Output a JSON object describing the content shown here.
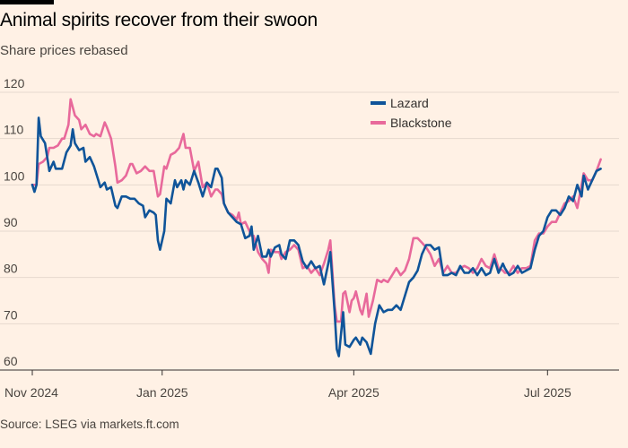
{
  "header": {
    "title": "Animal spirits recover from their swoon",
    "subtitle": "Share prices rebased"
  },
  "footer": {
    "source": "Source: LSEG via markets.ft.com"
  },
  "colors": {
    "background": "#fff1e5",
    "lazard": "#0f5499",
    "blackstone": "#e8699b",
    "grid": "#e6d9ce",
    "axis": "#33302e"
  },
  "chart_data": {
    "type": "line",
    "title": "Animal spirits recover from their swoon",
    "subtitle": "Share prices rebased",
    "xlabel": "",
    "ylabel": "",
    "ylim": [
      60,
      120
    ],
    "yticks": [
      120,
      110,
      100,
      90,
      80,
      70,
      60
    ],
    "grid": true,
    "legend_position": "top-center",
    "x_tick_labels": [
      "Nov 2024",
      "Jan 2025",
      "Apr 2025",
      "Jul 2025"
    ],
    "x_tick_days": [
      0,
      61,
      151,
      242
    ],
    "x_range_days": [
      0,
      268
    ],
    "series": [
      {
        "name": "Lazard",
        "color": "#0f5499",
        "points": [
          [
            0,
            100
          ],
          [
            1,
            98.5
          ],
          [
            2,
            100
          ],
          [
            3,
            114.5
          ],
          [
            4,
            110.5
          ],
          [
            6,
            109
          ],
          [
            7,
            106
          ],
          [
            8,
            103
          ],
          [
            10,
            105
          ],
          [
            11,
            103.5
          ],
          [
            14,
            103.5
          ],
          [
            16,
            107
          ],
          [
            18,
            108.5
          ],
          [
            19,
            112
          ],
          [
            20,
            109
          ],
          [
            22,
            107.5
          ],
          [
            24,
            108
          ],
          [
            25,
            105
          ],
          [
            27,
            106
          ],
          [
            29,
            104
          ],
          [
            31,
            101
          ],
          [
            32,
            99.5
          ],
          [
            34,
            100.5
          ],
          [
            35,
            99
          ],
          [
            37,
            99.5
          ],
          [
            39,
            95.5
          ],
          [
            40,
            95
          ],
          [
            42,
            97.5
          ],
          [
            44,
            97.5
          ],
          [
            46,
            97
          ],
          [
            48,
            97
          ],
          [
            50,
            96
          ],
          [
            52,
            95.5
          ],
          [
            53,
            93
          ],
          [
            55,
            94.5
          ],
          [
            57,
            94
          ],
          [
            58,
            93.5
          ],
          [
            59,
            88
          ],
          [
            60,
            86
          ],
          [
            62,
            90
          ],
          [
            63,
            97
          ],
          [
            65,
            96
          ],
          [
            67,
            101
          ],
          [
            68,
            99.5
          ],
          [
            70,
            101
          ],
          [
            71,
            99
          ],
          [
            72,
            101
          ],
          [
            74,
            100
          ],
          [
            76,
            103
          ],
          [
            78,
            100.5
          ],
          [
            80,
            97.5
          ],
          [
            82,
            100.5
          ],
          [
            84,
            99.5
          ],
          [
            86,
            103.5
          ],
          [
            87,
            103.5
          ],
          [
            89,
            101.5
          ],
          [
            90,
            96
          ],
          [
            92,
            94
          ],
          [
            94,
            93
          ],
          [
            96,
            92
          ],
          [
            98,
            91.5
          ],
          [
            100,
            88.5
          ],
          [
            102,
            89
          ],
          [
            103,
            91
          ],
          [
            104,
            86
          ],
          [
            106,
            89
          ],
          [
            108,
            84.5
          ],
          [
            110,
            84.5
          ],
          [
            111,
            86
          ],
          [
            112,
            84.5
          ],
          [
            114,
            86.5
          ],
          [
            116,
            87
          ],
          [
            117,
            85
          ],
          [
            119,
            84
          ],
          [
            121,
            88
          ],
          [
            123,
            88
          ],
          [
            125,
            87
          ],
          [
            127,
            83.5
          ],
          [
            129,
            82
          ],
          [
            131,
            83.5
          ],
          [
            133,
            82
          ],
          [
            135,
            82.5
          ],
          [
            137,
            78.5
          ],
          [
            139,
            83
          ],
          [
            140,
            85.5
          ],
          [
            142,
            72.5
          ],
          [
            143,
            64.5
          ],
          [
            144,
            63
          ],
          [
            146,
            72.5
          ],
          [
            147,
            65.5
          ],
          [
            149,
            65
          ],
          [
            151,
            66.5
          ],
          [
            152,
            67
          ],
          [
            154,
            65.5
          ],
          [
            155,
            67
          ],
          [
            157,
            66
          ],
          [
            159,
            63.5
          ],
          [
            161,
            70
          ],
          [
            163,
            74
          ],
          [
            165,
            72.5
          ],
          [
            167,
            73
          ],
          [
            169,
            73
          ],
          [
            171,
            74
          ],
          [
            173,
            73
          ],
          [
            175,
            76
          ],
          [
            177,
            79
          ],
          [
            179,
            80
          ],
          [
            181,
            81.5
          ],
          [
            183,
            85
          ],
          [
            185,
            87
          ],
          [
            187,
            87
          ],
          [
            189,
            86
          ],
          [
            191,
            86.5
          ],
          [
            193,
            80.5
          ],
          [
            195,
            80.5
          ],
          [
            197,
            81
          ],
          [
            199,
            80.5
          ],
          [
            201,
            82.5
          ],
          [
            203,
            81
          ],
          [
            205,
            81
          ],
          [
            207,
            82
          ],
          [
            209,
            80.5
          ],
          [
            211,
            82
          ],
          [
            213,
            80.5
          ],
          [
            215,
            81
          ],
          [
            217,
            84
          ],
          [
            219,
            81
          ],
          [
            221,
            83
          ],
          [
            222,
            82
          ],
          [
            224,
            80.5
          ],
          [
            226,
            81
          ],
          [
            228,
            82.5
          ],
          [
            230,
            81
          ],
          [
            232,
            81.5
          ],
          [
            234,
            82
          ],
          [
            236,
            86
          ],
          [
            238,
            89
          ],
          [
            240,
            90
          ],
          [
            242,
            93
          ],
          [
            244,
            94.5
          ],
          [
            246,
            94.5
          ],
          [
            248,
            93.5
          ],
          [
            250,
            95
          ],
          [
            252,
            97.5
          ],
          [
            254,
            96.5
          ],
          [
            256,
            100
          ],
          [
            258,
            97.5
          ],
          [
            259,
            102
          ],
          [
            261,
            99
          ],
          [
            263,
            101
          ],
          [
            265,
            103
          ],
          [
            267,
            103.5
          ]
        ]
      },
      {
        "name": "Blackstone",
        "color": "#e8699b",
        "points": [
          [
            0,
            100
          ],
          [
            2,
            100
          ],
          [
            3,
            104.5
          ],
          [
            5,
            105
          ],
          [
            7,
            106
          ],
          [
            8,
            108
          ],
          [
            10,
            108
          ],
          [
            12,
            108.5
          ],
          [
            14,
            110
          ],
          [
            15,
            110
          ],
          [
            17,
            113
          ],
          [
            18,
            118.5
          ],
          [
            20,
            115
          ],
          [
            22,
            114
          ],
          [
            23,
            112
          ],
          [
            25,
            113
          ],
          [
            27,
            111
          ],
          [
            29,
            110.5
          ],
          [
            30,
            111
          ],
          [
            32,
            110.5
          ],
          [
            34,
            113.5
          ],
          [
            35,
            112.5
          ],
          [
            37,
            110
          ],
          [
            39,
            104
          ],
          [
            40,
            100.5
          ],
          [
            42,
            101
          ],
          [
            44,
            102
          ],
          [
            46,
            104.5
          ],
          [
            47,
            104.5
          ],
          [
            49,
            102.5
          ],
          [
            51,
            103
          ],
          [
            53,
            104
          ],
          [
            55,
            103
          ],
          [
            57,
            103
          ],
          [
            59,
            97.5
          ],
          [
            60,
            98
          ],
          [
            62,
            104
          ],
          [
            63,
            103.5
          ],
          [
            65,
            106.5
          ],
          [
            67,
            107
          ],
          [
            69,
            108
          ],
          [
            71,
            111
          ],
          [
            72,
            108
          ],
          [
            74,
            108
          ],
          [
            76,
            103
          ],
          [
            78,
            105
          ],
          [
            80,
            99.5
          ],
          [
            82,
            100.5
          ],
          [
            84,
            97.5
          ],
          [
            86,
            99
          ],
          [
            87,
            99
          ],
          [
            89,
            98
          ],
          [
            90,
            96
          ],
          [
            92,
            94
          ],
          [
            94,
            93.5
          ],
          [
            96,
            92.5
          ],
          [
            97,
            94
          ],
          [
            98,
            91.5
          ],
          [
            100,
            92
          ],
          [
            102,
            90
          ],
          [
            103,
            89
          ],
          [
            104,
            89
          ],
          [
            106,
            85.5
          ],
          [
            108,
            84
          ],
          [
            110,
            83
          ],
          [
            111,
            81
          ],
          [
            112,
            86
          ],
          [
            114,
            85.5
          ],
          [
            116,
            85.5
          ],
          [
            117,
            84
          ],
          [
            119,
            85.5
          ],
          [
            121,
            86
          ],
          [
            123,
            87
          ],
          [
            125,
            86
          ],
          [
            127,
            82
          ],
          [
            129,
            82.5
          ],
          [
            131,
            81
          ],
          [
            133,
            82
          ],
          [
            135,
            80.5
          ],
          [
            137,
            83
          ],
          [
            139,
            86
          ],
          [
            140,
            88
          ],
          [
            142,
            74
          ],
          [
            143,
            70.5
          ],
          [
            145,
            70.5
          ],
          [
            146,
            76.5
          ],
          [
            147,
            77
          ],
          [
            149,
            72.5
          ],
          [
            150,
            75
          ],
          [
            151,
            75.5
          ],
          [
            152,
            77
          ],
          [
            154,
            73
          ],
          [
            155,
            72
          ],
          [
            157,
            76.5
          ],
          [
            158,
            71.5
          ],
          [
            160,
            75
          ],
          [
            162,
            79.5
          ],
          [
            164,
            79
          ],
          [
            165,
            79.5
          ],
          [
            167,
            79
          ],
          [
            169,
            80.5
          ],
          [
            171,
            82
          ],
          [
            173,
            80.5
          ],
          [
            175,
            81.5
          ],
          [
            177,
            84
          ],
          [
            179,
            88.5
          ],
          [
            181,
            88.5
          ],
          [
            183,
            87.5
          ],
          [
            185,
            86.5
          ],
          [
            187,
            85
          ],
          [
            189,
            82.5
          ],
          [
            191,
            84
          ],
          [
            193,
            81
          ],
          [
            195,
            82.5
          ],
          [
            197,
            81
          ],
          [
            199,
            81
          ],
          [
            201,
            82
          ],
          [
            203,
            82.5
          ],
          [
            205,
            82
          ],
          [
            207,
            81
          ],
          [
            209,
            82
          ],
          [
            211,
            84
          ],
          [
            213,
            82.5
          ],
          [
            215,
            82
          ],
          [
            217,
            85
          ],
          [
            219,
            82
          ],
          [
            221,
            81.5
          ],
          [
            222,
            81
          ],
          [
            224,
            81
          ],
          [
            226,
            82.5
          ],
          [
            228,
            81
          ],
          [
            230,
            82
          ],
          [
            232,
            82
          ],
          [
            234,
            82.5
          ],
          [
            236,
            88
          ],
          [
            238,
            89.5
          ],
          [
            240,
            89.5
          ],
          [
            242,
            91
          ],
          [
            244,
            92
          ],
          [
            246,
            92
          ],
          [
            248,
            94
          ],
          [
            250,
            96
          ],
          [
            252,
            96.5
          ],
          [
            254,
            97.5
          ],
          [
            256,
            95
          ],
          [
            258,
            100
          ],
          [
            259,
            102.5
          ],
          [
            261,
            101
          ],
          [
            263,
            101
          ],
          [
            265,
            103
          ],
          [
            267,
            105.5
          ]
        ]
      }
    ]
  }
}
